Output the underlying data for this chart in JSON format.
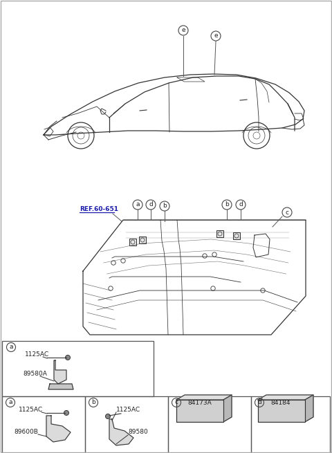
{
  "bg_color": "#ffffff",
  "line_color": "#333333",
  "callout_labels": [
    "a",
    "b",
    "c",
    "d",
    "e"
  ],
  "part_numbers_a": [
    "1125AC",
    "89580A"
  ],
  "part_numbers_b": [
    "1125AC",
    "89600B"
  ],
  "part_numbers_c": [
    "1125AC",
    "89580"
  ],
  "part_number_d": "84173A",
  "part_number_e": "84184",
  "ref_label": "REF.60-651"
}
